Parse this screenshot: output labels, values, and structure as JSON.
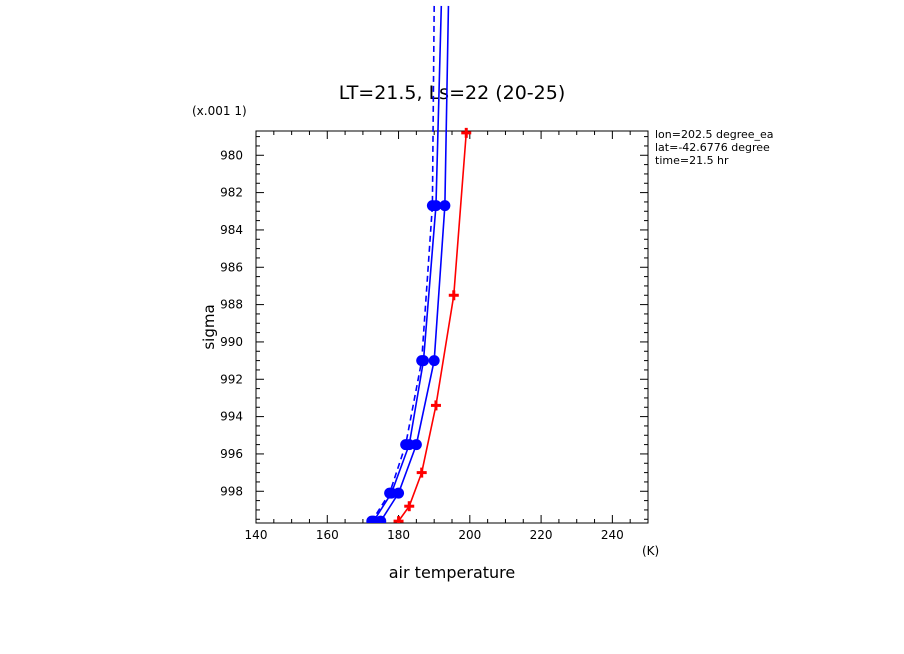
{
  "chart_data": {
    "type": "line",
    "title": "LT=21.5, Ls=22 (20-25)",
    "xlabel": "air temperature",
    "xunit": "(K)",
    "ylabel": "sigma",
    "yscale_note": "(x.001 1)",
    "xlim": [
      140,
      250
    ],
    "ylim": [
      999.7,
      978.7
    ],
    "x_ticks": [
      140,
      160,
      180,
      200,
      220,
      240
    ],
    "y_ticks": [
      980,
      982,
      984,
      986,
      988,
      990,
      992,
      994,
      996,
      998
    ],
    "info": [
      "lon=202.5 degree_ea",
      "lat=-42.6776 degree",
      "time=21.5 hr"
    ],
    "colors": {
      "red": "#ff0000",
      "blue": "#0000ff"
    },
    "series": [
      {
        "style": "solid",
        "marker": "plus",
        "color": "#ff0000",
        "points": [
          [
            199.0,
            978.8
          ],
          [
            195.5,
            987.5
          ],
          [
            190.5,
            993.4
          ],
          [
            186.5,
            997.0
          ],
          [
            183.0,
            998.8
          ],
          [
            180.0,
            999.6
          ]
        ]
      },
      {
        "style": "solid",
        "marker": "circle",
        "color": "#0000ff",
        "points": [
          [
            194.0,
            972.0
          ],
          [
            193.0,
            982.7
          ],
          [
            190.0,
            991.0
          ],
          [
            185.0,
            995.5
          ],
          [
            180.0,
            998.1
          ],
          [
            175.0,
            999.6
          ]
        ]
      },
      {
        "style": "solid",
        "marker": "circle",
        "color": "#0000ff",
        "points": [
          [
            192.0,
            972.0
          ],
          [
            190.5,
            982.7
          ],
          [
            187.0,
            991.0
          ],
          [
            183.0,
            995.5
          ],
          [
            178.0,
            998.1
          ],
          [
            173.0,
            999.6
          ]
        ]
      },
      {
        "style": "dashed",
        "marker": "circle",
        "color": "#0000ff",
        "points": [
          [
            190.0,
            972.0
          ],
          [
            189.5,
            982.7
          ],
          [
            186.5,
            991.0
          ],
          [
            182.0,
            995.5
          ],
          [
            177.5,
            998.1
          ],
          [
            172.5,
            999.6
          ]
        ]
      }
    ]
  }
}
